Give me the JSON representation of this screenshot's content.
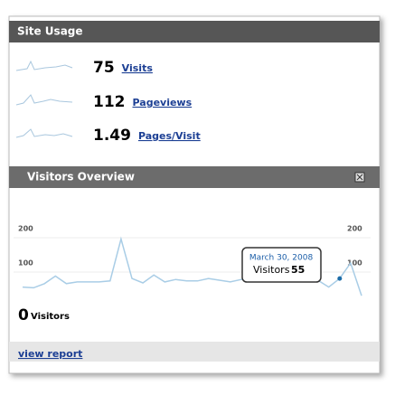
{
  "site_usage": {
    "title": "Site Usage",
    "metrics": [
      {
        "value": 75,
        "label": "Visits"
      },
      {
        "value": 112,
        "label": "Pageviews"
      },
      {
        "value": 1.49,
        "label": "Pages/Visit"
      }
    ]
  },
  "visitors_overview": {
    "title": "Visitors Overview",
    "ylim": [
      0,
      200
    ],
    "yticks": [
      100,
      200
    ],
    "values": [
      30,
      28,
      40,
      62,
      40,
      45,
      45,
      45,
      48,
      170,
      55,
      42,
      65,
      45,
      52,
      48,
      48,
      55,
      50,
      45,
      52,
      52,
      58,
      58,
      55,
      55,
      55,
      50,
      30,
      55,
      100,
      5
    ],
    "tooltip": {
      "date": "March 30, 2008",
      "label": "Visitors",
      "value": 55,
      "index": 29
    },
    "total": {
      "value": 0,
      "label": "Visitors"
    }
  },
  "footer": {
    "link": "view report"
  }
}
